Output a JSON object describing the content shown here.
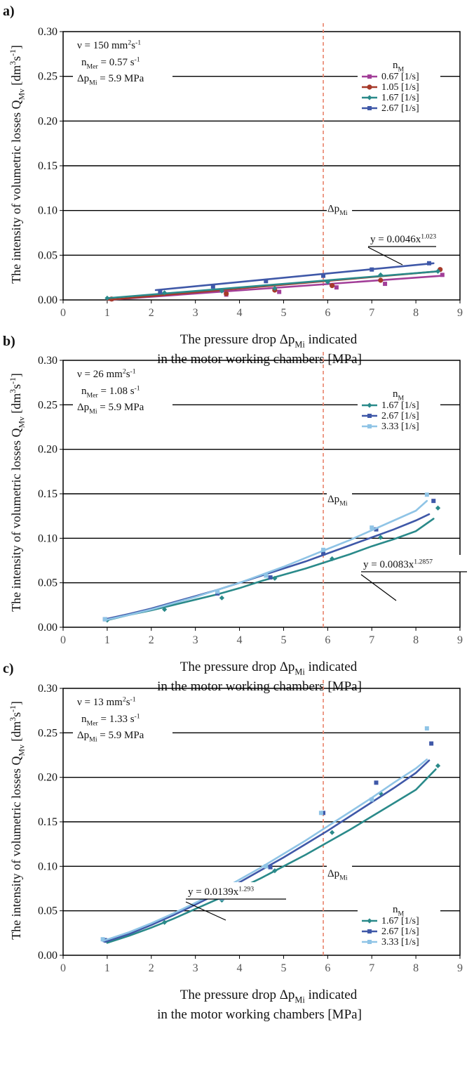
{
  "figure": {
    "xlabel_line1": "The pressure drop Δp",
    "xlabel_sub": "Mi",
    "xlabel_line1_tail": " indicated",
    "xlabel_line2": "in the motor working chambers [MPa]",
    "ylabel_main": "The intensity of volumetric losses Q",
    "ylabel_sub": "Mv",
    "ylabel_unit_open": " [dm",
    "ylabel_unit_sup1": "3",
    "ylabel_unit_mid": "s",
    "ylabel_unit_sup2": "-1",
    "ylabel_unit_close": "]",
    "vline_label": "Δp",
    "vline_label_sub": "Mi",
    "legend_title": "n",
    "legend_title_sub": "M"
  },
  "chart_data": [
    {
      "panel_label": "a)",
      "type": "line",
      "xlim": [
        0,
        9
      ],
      "ylim": [
        0,
        0.3
      ],
      "xticks": [
        "0",
        "1",
        "2",
        "3",
        "4",
        "5",
        "6",
        "7",
        "8",
        "9"
      ],
      "yticks": [
        "0.00",
        "0.05",
        "0.10",
        "0.15",
        "0.20",
        "0.25",
        "0.30"
      ],
      "grid": "horizontal",
      "vline_x": 5.9,
      "conditions": [
        {
          "pre": "ν = 150 mm",
          "sup": "2",
          "mid": "s",
          "sup2": "-1",
          "post": ""
        },
        {
          "pre": "n",
          "sub": "Mer",
          "post": " = 0.57 s",
          "sup2": "-1"
        },
        {
          "pre": "Δp",
          "sub": "Mi",
          "post": " = 5.9 MPa"
        }
      ],
      "equation": {
        "text": "y = 0.0046x",
        "sup": "1.023"
      },
      "legend_position": "top-right",
      "series": [
        {
          "name": "0.67 [1/s]",
          "color": "#a23e98",
          "marker": "square",
          "points": [
            [
              1.1,
              0.001
            ],
            [
              3.7,
              0.006
            ],
            [
              4.9,
              0.009
            ],
            [
              6.2,
              0.014
            ],
            [
              7.3,
              0.018
            ],
            [
              8.6,
              0.028
            ]
          ],
          "fit": [
            [
              1.0,
              0.0
            ],
            [
              8.6,
              0.027
            ]
          ]
        },
        {
          "name": "1.05 [1/s]",
          "color": "#a63a2a",
          "marker": "circle",
          "points": [
            [
              1.1,
              0.001
            ],
            [
              3.7,
              0.007
            ],
            [
              4.8,
              0.011
            ],
            [
              6.1,
              0.016
            ],
            [
              7.2,
              0.022
            ],
            [
              8.55,
              0.034
            ]
          ],
          "fit": [
            [
              1.0,
              0.0
            ],
            [
              8.5,
              0.032
            ]
          ]
        },
        {
          "name": "1.67 [1/s]",
          "color": "#2a8a8a",
          "marker": "diamond",
          "points": [
            [
              1.0,
              0.002
            ],
            [
              2.3,
              0.008
            ],
            [
              3.6,
              0.01
            ],
            [
              4.8,
              0.013
            ],
            [
              6.0,
              0.02
            ],
            [
              7.2,
              0.028
            ],
            [
              8.5,
              0.032
            ]
          ],
          "fit": [
            [
              1.0,
              0.002
            ],
            [
              8.5,
              0.032
            ]
          ]
        },
        {
          "name": "2.67 [1/s]",
          "color": "#3f58a8",
          "marker": "square",
          "points": [
            [
              2.2,
              0.009
            ],
            [
              3.4,
              0.015
            ],
            [
              4.6,
              0.021
            ],
            [
              5.9,
              0.027
            ],
            [
              7.0,
              0.034
            ],
            [
              8.3,
              0.041
            ]
          ],
          "fit": [
            [
              2.1,
              0.011
            ],
            [
              8.4,
              0.041
            ]
          ]
        }
      ]
    },
    {
      "panel_label": "b)",
      "type": "line",
      "xlim": [
        0,
        9
      ],
      "ylim": [
        0,
        0.3
      ],
      "xticks": [
        "0",
        "1",
        "2",
        "3",
        "4",
        "5",
        "6",
        "7",
        "8",
        "9"
      ],
      "yticks": [
        "0.00",
        "0.05",
        "0.10",
        "0.15",
        "0.20",
        "0.25",
        "0.30"
      ],
      "grid": "horizontal",
      "vline_x": 5.9,
      "conditions": [
        {
          "pre": "ν = 26 mm",
          "sup": "2",
          "mid": "s",
          "sup2": "-1",
          "post": ""
        },
        {
          "pre": "n",
          "sub": "Mer",
          "post": " = 1.08 s",
          "sup2": "-1"
        },
        {
          "pre": "Δp",
          "sub": "Mi",
          "post": " = 5.9 MPa"
        }
      ],
      "equation": {
        "text": "y = 0.0083x",
        "sup": "1.2857"
      },
      "legend_position": "top-right",
      "series": [
        {
          "name": "1.67 [1/s]",
          "color": "#2a8a8a",
          "marker": "diamond",
          "points": [
            [
              1.0,
              0.008
            ],
            [
              2.3,
              0.02
            ],
            [
              3.6,
              0.033
            ],
            [
              4.8,
              0.055
            ],
            [
              6.1,
              0.077
            ],
            [
              7.2,
              0.101
            ],
            [
              8.5,
              0.134
            ]
          ],
          "fit": [
            [
              1.0,
              0.008
            ],
            [
              1.5,
              0.014
            ],
            [
              2.0,
              0.019
            ],
            [
              2.5,
              0.025
            ],
            [
              3.0,
              0.031
            ],
            [
              3.5,
              0.037
            ],
            [
              4.0,
              0.044
            ],
            [
              4.5,
              0.052
            ],
            [
              5.0,
              0.059
            ],
            [
              5.5,
              0.066
            ],
            [
              6.0,
              0.074
            ],
            [
              6.5,
              0.082
            ],
            [
              7.0,
              0.091
            ],
            [
              7.5,
              0.099
            ],
            [
              8.0,
              0.108
            ],
            [
              8.4,
              0.122
            ]
          ]
        },
        {
          "name": "2.67 [1/s]",
          "color": "#3f58a8",
          "marker": "square",
          "points": [
            [
              0.95,
              0.009
            ],
            [
              3.5,
              0.038
            ],
            [
              4.7,
              0.056
            ],
            [
              5.9,
              0.083
            ],
            [
              7.1,
              0.11
            ],
            [
              8.4,
              0.142
            ]
          ],
          "fit": [
            [
              0.95,
              0.009
            ],
            [
              1.5,
              0.015
            ],
            [
              2.0,
              0.021
            ],
            [
              2.5,
              0.028
            ],
            [
              3.0,
              0.035
            ],
            [
              3.5,
              0.042
            ],
            [
              4.0,
              0.05
            ],
            [
              4.5,
              0.058
            ],
            [
              5.0,
              0.066
            ],
            [
              5.5,
              0.074
            ],
            [
              6.0,
              0.083
            ],
            [
              6.5,
              0.092
            ],
            [
              7.0,
              0.101
            ],
            [
              7.5,
              0.11
            ],
            [
              8.0,
              0.12
            ],
            [
              8.3,
              0.127
            ]
          ]
        },
        {
          "name": "3.33 [1/s]",
          "color": "#8fc4e6",
          "marker": "square",
          "points": [
            [
              0.95,
              0.009
            ],
            [
              3.5,
              0.04
            ],
            [
              4.6,
              0.058
            ],
            [
              5.9,
              0.087
            ],
            [
              7.0,
              0.112
            ],
            [
              8.25,
              0.149
            ]
          ],
          "fit": [
            [
              0.95,
              0.008
            ],
            [
              1.5,
              0.014
            ],
            [
              2.0,
              0.02
            ],
            [
              2.5,
              0.027
            ],
            [
              3.0,
              0.034
            ],
            [
              3.5,
              0.042
            ],
            [
              4.0,
              0.05
            ],
            [
              4.5,
              0.059
            ],
            [
              5.0,
              0.068
            ],
            [
              5.5,
              0.078
            ],
            [
              6.0,
              0.088
            ],
            [
              6.5,
              0.098
            ],
            [
              7.0,
              0.109
            ],
            [
              7.5,
              0.12
            ],
            [
              8.0,
              0.131
            ],
            [
              8.25,
              0.142
            ]
          ]
        }
      ]
    },
    {
      "panel_label": "c)",
      "type": "line",
      "xlim": [
        0,
        9
      ],
      "ylim": [
        0,
        0.3
      ],
      "xticks": [
        "0",
        "1",
        "2",
        "3",
        "4",
        "5",
        "6",
        "7",
        "8",
        "9"
      ],
      "yticks": [
        "0.00",
        "0.05",
        "0.10",
        "0.15",
        "0.20",
        "0.25",
        "0.30"
      ],
      "grid": "horizontal",
      "vline_x": 5.9,
      "conditions": [
        {
          "pre": "ν = 13 mm",
          "sup": "2",
          "mid": "s",
          "sup2": "-1",
          "post": ""
        },
        {
          "pre": "n",
          "sub": "Mer",
          "post": " = 1.33 s",
          "sup2": "-1"
        },
        {
          "pre": "Δp",
          "sub": "Mi",
          "post": " = 5.9 MPa"
        }
      ],
      "equation": {
        "text": "y = 0.0139x",
        "sup": "1.293"
      },
      "legend_position": "bottom-right",
      "series": [
        {
          "name": "1.67 [1/s]",
          "color": "#2a8a8a",
          "marker": "diamond",
          "points": [
            [
              1.0,
              0.016
            ],
            [
              2.3,
              0.037
            ],
            [
              3.6,
              0.062
            ],
            [
              4.8,
              0.095
            ],
            [
              6.1,
              0.138
            ],
            [
              7.2,
              0.182
            ],
            [
              8.5,
              0.213
            ]
          ],
          "fit": [
            [
              1.0,
              0.014
            ],
            [
              1.5,
              0.022
            ],
            [
              2.0,
              0.031
            ],
            [
              2.5,
              0.041
            ],
            [
              3.0,
              0.052
            ],
            [
              3.5,
              0.063
            ],
            [
              4.0,
              0.075
            ],
            [
              4.5,
              0.087
            ],
            [
              5.0,
              0.1
            ],
            [
              5.5,
              0.113
            ],
            [
              6.0,
              0.127
            ],
            [
              6.5,
              0.141
            ],
            [
              7.0,
              0.156
            ],
            [
              7.5,
              0.171
            ],
            [
              8.0,
              0.186
            ],
            [
              8.45,
              0.209
            ]
          ]
        },
        {
          "name": "2.67 [1/s]",
          "color": "#3f58a8",
          "marker": "square",
          "points": [
            [
              0.95,
              0.017
            ],
            [
              3.5,
              0.065
            ],
            [
              4.7,
              0.099
            ],
            [
              5.9,
              0.16
            ],
            [
              7.1,
              0.194
            ],
            [
              8.35,
              0.238
            ]
          ],
          "fit": [
            [
              0.95,
              0.015
            ],
            [
              1.5,
              0.024
            ],
            [
              2.0,
              0.034
            ],
            [
              2.5,
              0.045
            ],
            [
              3.0,
              0.057
            ],
            [
              3.5,
              0.069
            ],
            [
              4.0,
              0.082
            ],
            [
              4.5,
              0.096
            ],
            [
              5.0,
              0.11
            ],
            [
              5.5,
              0.125
            ],
            [
              6.0,
              0.14
            ],
            [
              6.5,
              0.156
            ],
            [
              7.0,
              0.172
            ],
            [
              7.5,
              0.188
            ],
            [
              8.0,
              0.205
            ],
            [
              8.3,
              0.219
            ]
          ]
        },
        {
          "name": "3.33 [1/s]",
          "color": "#8fc4e6",
          "marker": "square",
          "points": [
            [
              0.9,
              0.018
            ],
            [
              3.6,
              0.064
            ],
            [
              4.6,
              0.1
            ],
            [
              5.85,
              0.16
            ],
            [
              7.0,
              0.175
            ],
            [
              8.25,
              0.255
            ]
          ],
          "fit": [
            [
              0.9,
              0.016
            ],
            [
              1.5,
              0.026
            ],
            [
              2.0,
              0.036
            ],
            [
              2.5,
              0.047
            ],
            [
              3.0,
              0.059
            ],
            [
              3.5,
              0.071
            ],
            [
              4.0,
              0.085
            ],
            [
              4.5,
              0.099
            ],
            [
              5.0,
              0.114
            ],
            [
              5.5,
              0.129
            ],
            [
              6.0,
              0.145
            ],
            [
              6.5,
              0.161
            ],
            [
              7.0,
              0.177
            ],
            [
              7.5,
              0.194
            ],
            [
              8.0,
              0.21
            ],
            [
              8.25,
              0.22
            ]
          ]
        }
      ]
    }
  ]
}
